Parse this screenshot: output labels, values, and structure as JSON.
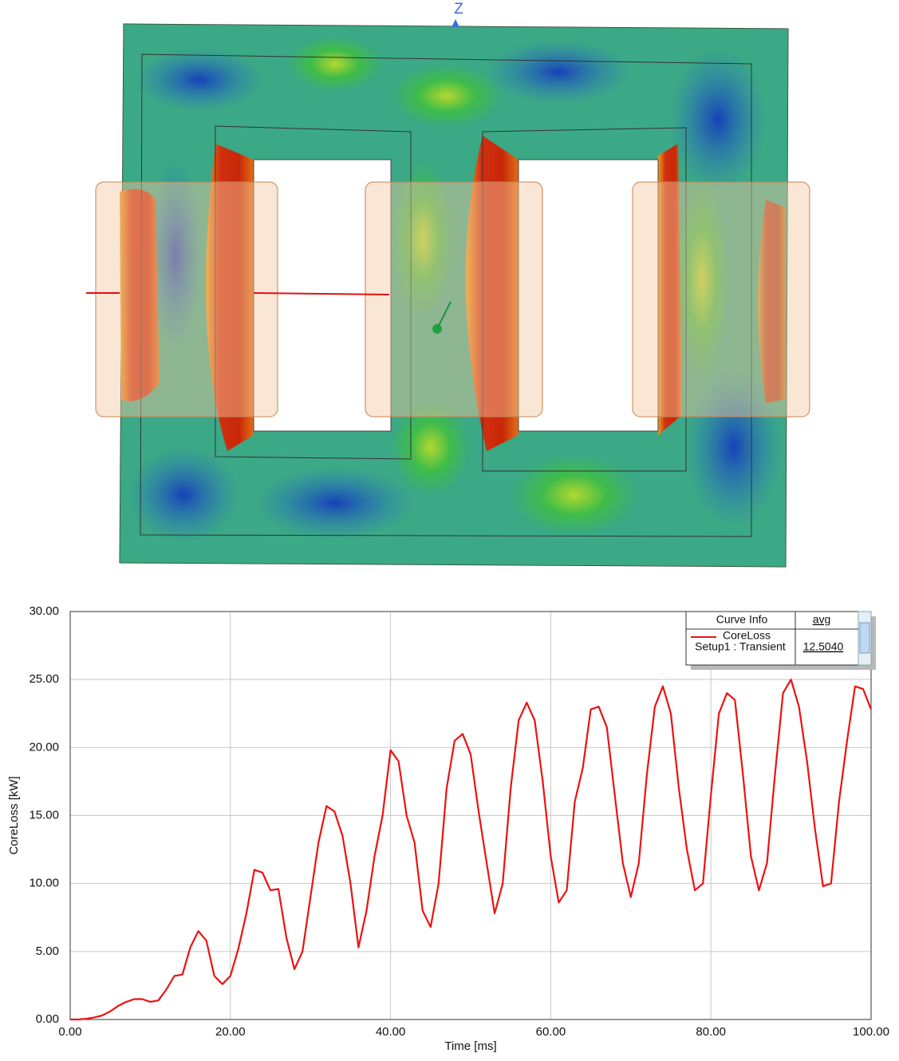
{
  "view": {
    "axis_label": "Z"
  },
  "chart_data": {
    "type": "line",
    "x_label": "Time [ms]",
    "y_label": "CoreLoss [kW]",
    "x": [
      0,
      1,
      2,
      3,
      4,
      5,
      6,
      7,
      8,
      9,
      10,
      11,
      12,
      13,
      14,
      15,
      16,
      17,
      18,
      19,
      20,
      21,
      22,
      23,
      24,
      25,
      26,
      27,
      28,
      29,
      30,
      31,
      32,
      33,
      34,
      35,
      36,
      37,
      38,
      39,
      40,
      41,
      42,
      43,
      44,
      45,
      46,
      47,
      48,
      49,
      50,
      51,
      52,
      53,
      54,
      55,
      56,
      57,
      58,
      59,
      60,
      61,
      62,
      63,
      64,
      65,
      66,
      67,
      68,
      69,
      70,
      71,
      72,
      73,
      74,
      75,
      76,
      77,
      78,
      79,
      80,
      81,
      82,
      83,
      84,
      85,
      86,
      87,
      88,
      89,
      90,
      91,
      92,
      93,
      94,
      95,
      96,
      97,
      98,
      99,
      100
    ],
    "series": [
      {
        "name": "CoreLoss",
        "color": "#ee1111",
        "values": [
          0,
          0,
          0.05,
          0.15,
          0.3,
          0.6,
          1.0,
          1.3,
          1.5,
          1.5,
          1.3,
          1.4,
          2.2,
          3.2,
          3.3,
          5.3,
          6.5,
          5.8,
          3.2,
          2.6,
          3.2,
          5.2,
          7.8,
          11.0,
          10.8,
          9.5,
          9.6,
          6.0,
          3.7,
          5.0,
          9.0,
          13.0,
          15.7,
          15.3,
          13.5,
          10.0,
          5.3,
          8.0,
          12.0,
          15.0,
          19.8,
          19.0,
          15.0,
          13.0,
          8.0,
          6.8,
          10.0,
          17.0,
          20.5,
          21.0,
          19.5,
          15.3,
          11.5,
          7.8,
          10.0,
          17.0,
          22.0,
          23.3,
          22.0,
          17.5,
          12.0,
          8.6,
          9.5,
          16.0,
          18.5,
          22.8,
          23.0,
          21.5,
          16.5,
          11.5,
          9.0,
          11.5,
          18.0,
          23.0,
          24.5,
          22.5,
          17.0,
          12.5,
          9.5,
          10.0,
          16.5,
          22.5,
          24.0,
          23.5,
          18.0,
          12.0,
          9.5,
          11.5,
          18.0,
          24.0,
          25.0,
          23.0,
          19.0,
          14.0,
          9.8,
          10.0,
          16.0,
          20.5,
          24.5,
          24.3,
          22.8
        ]
      }
    ],
    "xlim": [
      0,
      100
    ],
    "ylim": [
      0,
      30
    ],
    "xticks": [
      {
        "value": 0,
        "label": "0.00"
      },
      {
        "value": 20,
        "label": "20.00"
      },
      {
        "value": 40,
        "label": "40.00"
      },
      {
        "value": 60,
        "label": "60.00"
      },
      {
        "value": 80,
        "label": "80.00"
      },
      {
        "value": 100,
        "label": "100.00"
      }
    ],
    "yticks": [
      {
        "value": 0,
        "label": "0.00"
      },
      {
        "value": 5,
        "label": "5.00"
      },
      {
        "value": 10,
        "label": "10.00"
      },
      {
        "value": 15,
        "label": "15.00"
      },
      {
        "value": 20,
        "label": "20.00"
      },
      {
        "value": 25,
        "label": "25.00"
      },
      {
        "value": 30,
        "label": "30.00"
      }
    ],
    "grid": true,
    "legend": {
      "columns": [
        "Curve Info",
        "avg"
      ],
      "context": "Setup1 : Transient",
      "avg": "12.5040"
    }
  }
}
